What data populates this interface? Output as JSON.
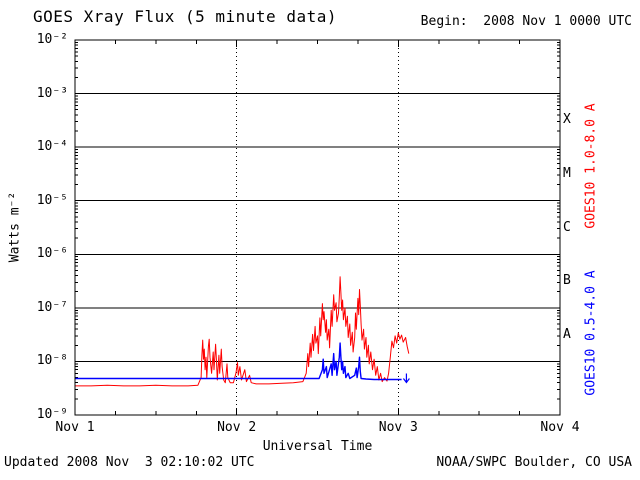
{
  "header": {
    "title": "GOES Xray Flux (5 minute data)",
    "begin_label": "Begin:  2008 Nov 1 0000 UTC"
  },
  "footer": {
    "updated": "Updated 2008 Nov  3 02:10:02 UTC",
    "source": "NOAA/SWPC Boulder, CO USA"
  },
  "chart_data": {
    "type": "line",
    "title": "GOES Xray Flux (5 minute data)",
    "xlabel": "Universal Time",
    "ylabel": "Watts m⁻²",
    "background": "#ffffff",
    "frame_color": "#000000",
    "x_axis": {
      "lim_days": [
        0,
        3
      ],
      "ticks": [
        {
          "day": 0,
          "label": "Nov 1"
        },
        {
          "day": 1,
          "label": "Nov 2"
        },
        {
          "day": 2,
          "label": "Nov 3"
        },
        {
          "day": 3,
          "label": "Nov 4"
        }
      ],
      "minor_tick_hours": 6,
      "dotted_gridline_days": [
        1,
        2
      ]
    },
    "y_axis": {
      "scale": "log",
      "lim_exp": [
        -9,
        -2
      ],
      "ticks": [
        {
          "exp": -2,
          "label": "10⁻²"
        },
        {
          "exp": -3,
          "label": "10⁻³"
        },
        {
          "exp": -4,
          "label": "10⁻⁴"
        },
        {
          "exp": -5,
          "label": "10⁻⁵"
        },
        {
          "exp": -6,
          "label": "10⁻⁶"
        },
        {
          "exp": -7,
          "label": "10⁻⁷"
        },
        {
          "exp": -8,
          "label": "10⁻⁸"
        },
        {
          "exp": -9,
          "label": "10⁻⁹"
        }
      ],
      "solid_gridline_exps": [
        -3,
        -4,
        -5,
        -6,
        -7,
        -8
      ]
    },
    "flare_classes": [
      {
        "label": "X",
        "exp": -3.5
      },
      {
        "label": "M",
        "exp": -4.5
      },
      {
        "label": "C",
        "exp": -5.5
      },
      {
        "label": "B",
        "exp": -6.5
      },
      {
        "label": "A",
        "exp": -7.5
      }
    ],
    "series": [
      {
        "id": "goes10-long",
        "name": "GOES10 1.0-8.0 A",
        "color": "#ff0000",
        "stroke_width": 1.0,
        "points": [
          [
            0.0,
            3.5e-09
          ],
          [
            0.1,
            3.5e-09
          ],
          [
            0.2,
            3.6e-09
          ],
          [
            0.3,
            3.5e-09
          ],
          [
            0.4,
            3.5e-09
          ],
          [
            0.5,
            3.6e-09
          ],
          [
            0.6,
            3.5e-09
          ],
          [
            0.7,
            3.5e-09
          ],
          [
            0.76,
            3.6e-09
          ],
          [
            0.78,
            5e-09
          ],
          [
            0.785,
            1.3e-08
          ],
          [
            0.79,
            2.5e-08
          ],
          [
            0.795,
            1.1e-08
          ],
          [
            0.8,
            1.7e-08
          ],
          [
            0.805,
            7e-09
          ],
          [
            0.81,
            1.2e-08
          ],
          [
            0.815,
            5e-09
          ],
          [
            0.825,
            1.9e-08
          ],
          [
            0.83,
            2.6e-08
          ],
          [
            0.835,
            1.2e-08
          ],
          [
            0.845,
            6e-09
          ],
          [
            0.855,
            1.5e-08
          ],
          [
            0.86,
            7e-09
          ],
          [
            0.87,
            2.1e-08
          ],
          [
            0.875,
            1e-08
          ],
          [
            0.88,
            4.5e-09
          ],
          [
            0.89,
            1.3e-08
          ],
          [
            0.895,
            6e-09
          ],
          [
            0.905,
            1.7e-08
          ],
          [
            0.91,
            8e-09
          ],
          [
            0.92,
            4.5e-09
          ],
          [
            0.93,
            4e-09
          ],
          [
            0.94,
            9e-09
          ],
          [
            0.945,
            5e-09
          ],
          [
            0.96,
            4e-09
          ],
          [
            0.98,
            4e-09
          ],
          [
            0.995,
            6e-09
          ],
          [
            1.005,
            9.5e-09
          ],
          [
            1.01,
            5.5e-09
          ],
          [
            1.02,
            8e-09
          ],
          [
            1.03,
            4.5e-09
          ],
          [
            1.05,
            7e-09
          ],
          [
            1.06,
            4.2e-09
          ],
          [
            1.08,
            5.5e-09
          ],
          [
            1.09,
            4e-09
          ],
          [
            1.12,
            3.8e-09
          ],
          [
            1.2,
            3.8e-09
          ],
          [
            1.28,
            3.9e-09
          ],
          [
            1.35,
            4e-09
          ],
          [
            1.41,
            4.2e-09
          ],
          [
            1.43,
            6e-09
          ],
          [
            1.44,
            1.4e-08
          ],
          [
            1.445,
            8e-09
          ],
          [
            1.455,
            2.2e-08
          ],
          [
            1.46,
            1.2e-08
          ],
          [
            1.47,
            3.2e-08
          ],
          [
            1.475,
            1.6e-08
          ],
          [
            1.485,
            4.5e-08
          ],
          [
            1.49,
            2.2e-08
          ],
          [
            1.5,
            3e-08
          ],
          [
            1.505,
            1.4e-08
          ],
          [
            1.515,
            6.5e-08
          ],
          [
            1.52,
            3e-08
          ],
          [
            1.53,
            1.2e-07
          ],
          [
            1.535,
            6e-08
          ],
          [
            1.54,
            8.5e-08
          ],
          [
            1.55,
            3.5e-08
          ],
          [
            1.555,
            6e-08
          ],
          [
            1.56,
            2.5e-08
          ],
          [
            1.57,
            4e-08
          ],
          [
            1.575,
            1.8e-08
          ],
          [
            1.585,
            9e-08
          ],
          [
            1.59,
            4.5e-08
          ],
          [
            1.6,
            1.75e-07
          ],
          [
            1.605,
            9e-08
          ],
          [
            1.615,
            1.25e-07
          ],
          [
            1.62,
            5.5e-08
          ],
          [
            1.63,
            8e-08
          ],
          [
            1.635,
            1.6e-07
          ],
          [
            1.64,
            3.8e-07
          ],
          [
            1.645,
            1.9e-07
          ],
          [
            1.65,
            9e-08
          ],
          [
            1.655,
            1.4e-07
          ],
          [
            1.66,
            6e-08
          ],
          [
            1.67,
            1e-07
          ],
          [
            1.675,
            4.5e-08
          ],
          [
            1.685,
            7e-08
          ],
          [
            1.69,
            2.8e-08
          ],
          [
            1.7,
            5e-08
          ],
          [
            1.705,
            2e-08
          ],
          [
            1.715,
            3.5e-08
          ],
          [
            1.72,
            1.5e-08
          ],
          [
            1.73,
            2.8e-08
          ],
          [
            1.735,
            8e-08
          ],
          [
            1.74,
            4e-08
          ],
          [
            1.75,
            1.5e-07
          ],
          [
            1.755,
            7.5e-08
          ],
          [
            1.76,
            2.2e-07
          ],
          [
            1.765,
            1.1e-07
          ],
          [
            1.77,
            5e-08
          ],
          [
            1.775,
            2.5e-08
          ],
          [
            1.785,
            4e-08
          ],
          [
            1.79,
            1.7e-08
          ],
          [
            1.8,
            2.8e-08
          ],
          [
            1.805,
            1.2e-08
          ],
          [
            1.815,
            2e-08
          ],
          [
            1.82,
            9e-09
          ],
          [
            1.83,
            1.5e-08
          ],
          [
            1.84,
            7e-09
          ],
          [
            1.85,
            1.1e-08
          ],
          [
            1.86,
            5.5e-09
          ],
          [
            1.87,
            8e-09
          ],
          [
            1.88,
            4.5e-09
          ],
          [
            1.89,
            6e-09
          ],
          [
            1.9,
            4.2e-09
          ],
          [
            1.915,
            5e-09
          ],
          [
            1.93,
            4.3e-09
          ],
          [
            1.94,
            6e-09
          ],
          [
            1.95,
            1.2e-08
          ],
          [
            1.96,
            2.4e-08
          ],
          [
            1.97,
            1.8e-08
          ],
          [
            1.98,
            3e-08
          ],
          [
            1.99,
            2.2e-08
          ],
          [
            2.0,
            3.4e-08
          ],
          [
            2.01,
            2.6e-08
          ],
          [
            2.02,
            3.1e-08
          ],
          [
            2.03,
            2.3e-08
          ],
          [
            2.045,
            2.8e-08
          ],
          [
            2.055,
            1.9e-08
          ],
          [
            2.065,
            1.4e-08
          ]
        ]
      },
      {
        "id": "goes10-short",
        "name": "GOES10 0.5-4.0 A",
        "color": "#0000ff",
        "stroke_width": 1.4,
        "points": [
          [
            0.0,
            4.8e-09
          ],
          [
            0.3,
            4.8e-09
          ],
          [
            0.6,
            4.8e-09
          ],
          [
            0.9,
            4.8e-09
          ],
          [
            1.2,
            4.8e-09
          ],
          [
            1.45,
            4.8e-09
          ],
          [
            1.51,
            4.8e-09
          ],
          [
            1.53,
            7e-09
          ],
          [
            1.535,
            1.1e-08
          ],
          [
            1.54,
            6e-09
          ],
          [
            1.555,
            8e-09
          ],
          [
            1.56,
            5e-09
          ],
          [
            1.585,
            9e-09
          ],
          [
            1.59,
            5.5e-09
          ],
          [
            1.6,
            1.4e-08
          ],
          [
            1.605,
            7e-09
          ],
          [
            1.615,
            1e-08
          ],
          [
            1.62,
            5.5e-09
          ],
          [
            1.635,
            1.2e-08
          ],
          [
            1.64,
            2.2e-08
          ],
          [
            1.645,
            1.2e-08
          ],
          [
            1.65,
            7e-09
          ],
          [
            1.655,
            1e-08
          ],
          [
            1.66,
            6e-09
          ],
          [
            1.67,
            8e-09
          ],
          [
            1.675,
            5e-09
          ],
          [
            1.69,
            6e-09
          ],
          [
            1.7,
            4.8e-09
          ],
          [
            1.73,
            5.5e-09
          ],
          [
            1.74,
            7.5e-09
          ],
          [
            1.745,
            5e-09
          ],
          [
            1.755,
            8e-09
          ],
          [
            1.76,
            1.2e-08
          ],
          [
            1.765,
            6.5e-09
          ],
          [
            1.77,
            4.8e-09
          ],
          [
            1.8,
            4.7e-09
          ],
          [
            1.85,
            4.6e-09
          ],
          [
            1.9,
            4.6e-09
          ],
          [
            1.95,
            4.6e-09
          ],
          [
            2.0,
            4.6e-09
          ],
          [
            2.02,
            4.6e-09
          ]
        ],
        "end_marker": {
          "day": 2.05,
          "flux": 4.6e-09,
          "symbol": "down-arrow"
        }
      }
    ]
  }
}
